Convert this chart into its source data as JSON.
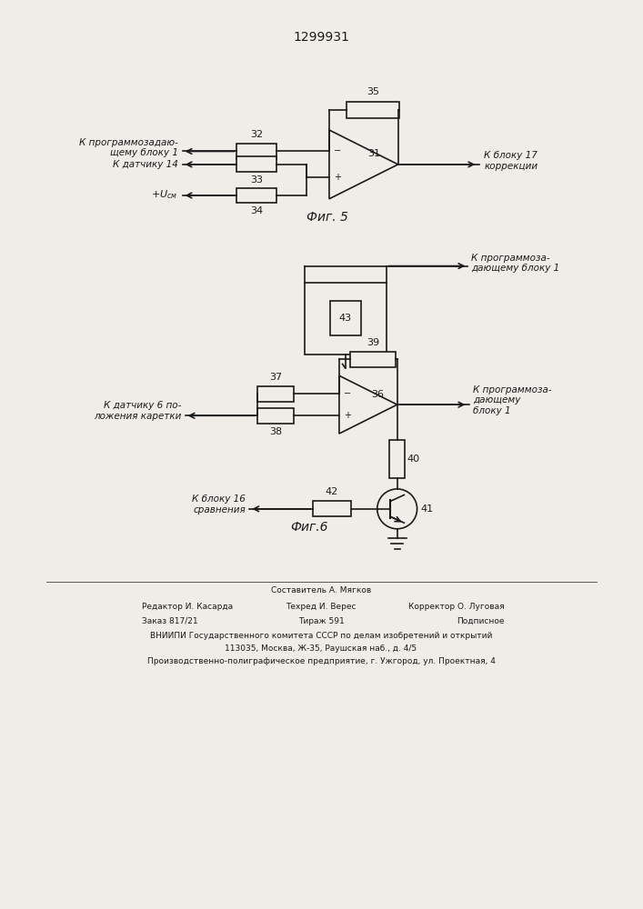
{
  "patent_number": "1299931",
  "bg_color": "#f0ede8",
  "line_color": "#1a1a1a",
  "fig5_caption": "Фиг. 5",
  "fig6_caption": "Фиг.6",
  "footer": {
    "line1": "Составитель А. Мягков",
    "editor": "Редактор И. Касарда",
    "techred": "Техред И. Верес",
    "corrector": "Корректор О. Луговая",
    "zakaz": "Заказ 817/21",
    "tiraz": "Тираж 591",
    "podpisnoe": "Подписное",
    "vniip": "ВНИИПИ Государственного комитета СССР по делам изобретений и открытий",
    "addr1": "113035, Москва, Ж-35, Раушская наб., д. 4/5",
    "addr2": "Производственно-полиграфическое предприятие, г. Ужгород, ул. Проектная, 4"
  }
}
